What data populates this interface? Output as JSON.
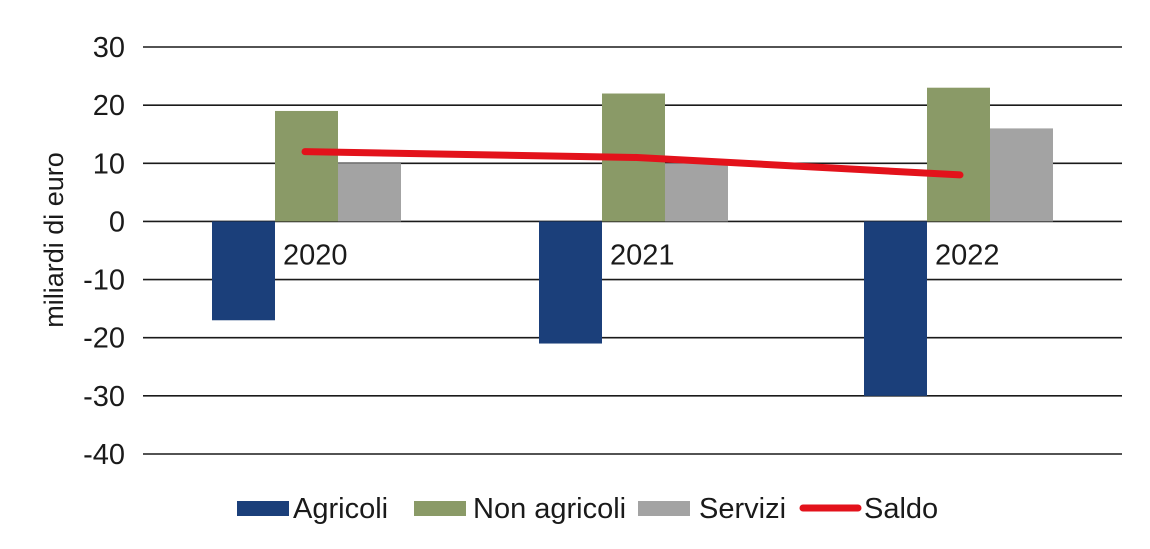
{
  "chart_data": {
    "type": "bar",
    "title": "",
    "xlabel": "",
    "ylabel": "miliardi di euro",
    "ylim": [
      -40,
      30
    ],
    "yticks": [
      30,
      20,
      10,
      0,
      -10,
      -20,
      -30,
      -40
    ],
    "grid": true,
    "categories": [
      "2020",
      "2021",
      "2022"
    ],
    "series": [
      {
        "name": "Agricoli",
        "kind": "bar",
        "color": "#1b3f7a",
        "values": [
          -17,
          -21,
          -30
        ]
      },
      {
        "name": "Non agricoli",
        "kind": "bar",
        "color": "#8a9a67",
        "values": [
          19,
          22,
          23
        ]
      },
      {
        "name": "Servizi",
        "kind": "bar",
        "color": "#a3a3a3",
        "values": [
          10,
          10,
          16
        ]
      },
      {
        "name": "Saldo",
        "kind": "line",
        "color": "#e3121b",
        "values": [
          12,
          11,
          8
        ]
      }
    ],
    "legend": "bottom"
  }
}
